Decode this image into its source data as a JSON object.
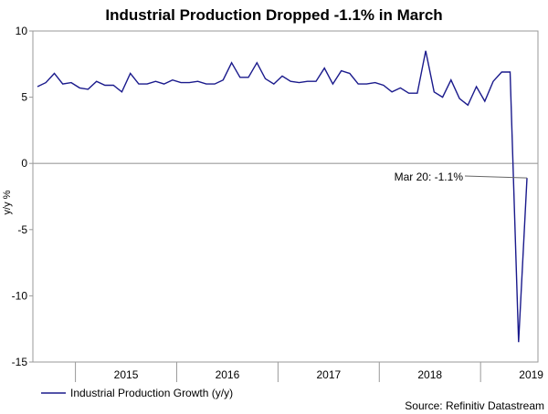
{
  "chart_data": {
    "type": "line",
    "title": "Industrial Production Dropped -1.1% in March",
    "ylabel": "y/y %",
    "xlabel": "",
    "ylim": [
      -15,
      10
    ],
    "yticks": [
      10,
      5,
      0,
      -5,
      -10,
      -15
    ],
    "year_labels": [
      "2015",
      "2016",
      "2017",
      "2018",
      "2019"
    ],
    "series": [
      {
        "name": "Industrial Production Growth (y/y)",
        "color": "#1a1a8c",
        "start": "2014-08",
        "values": [
          5.8,
          6.1,
          6.8,
          6.0,
          6.1,
          5.7,
          5.6,
          6.2,
          5.9,
          5.9,
          5.4,
          6.8,
          6.0,
          6.0,
          6.2,
          6.0,
          6.3,
          6.1,
          6.1,
          6.2,
          6.0,
          6.0,
          6.3,
          7.6,
          6.5,
          6.5,
          7.6,
          6.4,
          6.0,
          6.6,
          6.2,
          6.1,
          6.2,
          6.2,
          7.2,
          6.0,
          7.0,
          6.8,
          6.0,
          6.0,
          6.1,
          5.9,
          5.4,
          5.7,
          5.3,
          5.3,
          8.5,
          5.4,
          5.0,
          6.3,
          4.9,
          4.4,
          5.8,
          4.7,
          6.2,
          6.9,
          6.9,
          -13.5,
          -1.1
        ]
      }
    ],
    "annotation": {
      "text": "Mar 20: -1.1%",
      "value": -1.1
    },
    "source": "Source: Refinitiv Datastream"
  }
}
